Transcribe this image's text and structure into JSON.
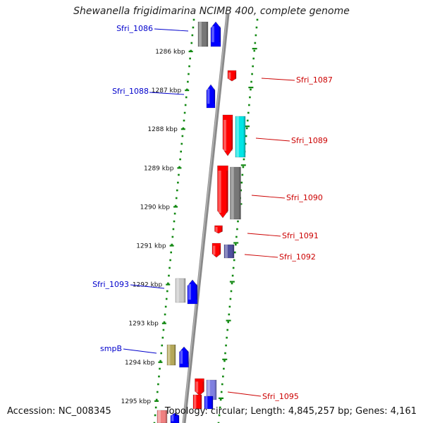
{
  "title": "Shewanella frigidimarina NCIMB 400, complete genome",
  "footer": {
    "accession": "Accession: NC_008345",
    "summary": "Topology: circular; Length: 4,845,257 bp; Genes: 4,161"
  },
  "kbp_ticks": [
    {
      "label": "1286 kbp",
      "kbp": 1286
    },
    {
      "label": "1287 kbp",
      "kbp": 1287
    },
    {
      "label": "1288 kbp",
      "kbp": 1288
    },
    {
      "label": "1289 kbp",
      "kbp": 1289
    },
    {
      "label": "1290 kbp",
      "kbp": 1290
    },
    {
      "label": "1291 kbp",
      "kbp": 1291
    },
    {
      "label": "1292 kbp",
      "kbp": 1292
    },
    {
      "label": "1293 kbp",
      "kbp": 1293
    },
    {
      "label": "1294 kbp",
      "kbp": 1294
    },
    {
      "label": "1295 kbp",
      "kbp": 1295
    }
  ],
  "gene_labels": [
    {
      "name": "Sfri_1086",
      "strand": "left",
      "color": "#0000cc"
    },
    {
      "name": "Sfri_1087",
      "strand": "right",
      "color": "#cc0000"
    },
    {
      "name": "Sfri_1088",
      "strand": "left",
      "color": "#0000cc"
    },
    {
      "name": "Sfri_1089",
      "strand": "right",
      "color": "#cc0000"
    },
    {
      "name": "Sfri_1090",
      "strand": "right",
      "color": "#cc0000"
    },
    {
      "name": "Sfri_1091",
      "strand": "right",
      "color": "#cc0000"
    },
    {
      "name": "Sfri_1092",
      "strand": "right",
      "color": "#cc0000"
    },
    {
      "name": "Sfri_1093",
      "strand": "left",
      "color": "#0000cc"
    },
    {
      "name": "smpB",
      "strand": "left",
      "color": "#0000cc"
    },
    {
      "name": "Sfri_1095",
      "strand": "right",
      "color": "#cc0000"
    }
  ],
  "colors": {
    "forward": "#ff0000",
    "reverse": "#0000ff",
    "grey": "#777777",
    "cyan": "#00e5e5",
    "slate": "#5050a0",
    "olive": "#b5a85a",
    "lightgrey": "#c8c8c8",
    "lavender": "#8080e0",
    "pink": "#f08080",
    "ruler_dots": "#118811",
    "axis": "#808080"
  }
}
